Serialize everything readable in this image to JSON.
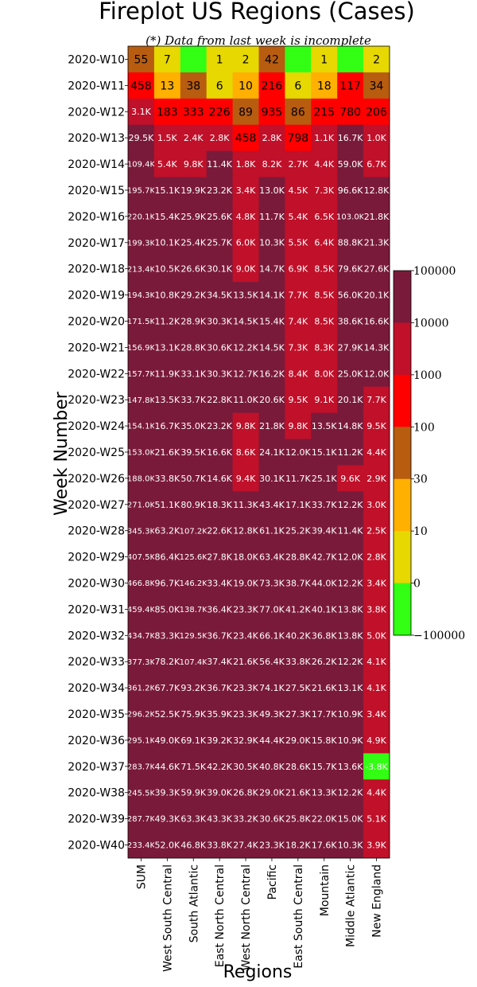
{
  "chart_data": {
    "type": "heatmap",
    "title": "Fireplot US Regions (Cases)",
    "subtitle": "(*) Data from last week is incomplete",
    "xlabel": "Regions",
    "ylabel": "Week Number",
    "columns": [
      "SUM",
      "West South Central",
      "South Atlantic",
      "East North Central",
      "West North Central",
      "Pacific",
      "East South Central",
      "Mountain",
      "Middle Atlantic",
      "New England"
    ],
    "rows": [
      "2020-W10",
      "2020-W11",
      "2020-W12",
      "2020-W13",
      "2020-W14",
      "2020-W15",
      "2020-W16",
      "2020-W17",
      "2020-W18",
      "2020-W19",
      "2020-W20",
      "2020-W21",
      "2020-W22",
      "2020-W23",
      "2020-W24",
      "2020-W25",
      "2020-W26",
      "2020-W27",
      "2020-W28",
      "2020-W29",
      "2020-W30",
      "2020-W31",
      "2020-W32",
      "2020-W33",
      "2020-W34",
      "2020-W35",
      "2020-W36",
      "2020-W37",
      "2020-W38",
      "2020-W39",
      "2020-W40"
    ],
    "cells": [
      [
        "55",
        "7",
        "",
        "1",
        "2",
        "42",
        "",
        "1",
        "",
        "2"
      ],
      [
        "458",
        "13",
        "38",
        "6",
        "10",
        "216",
        "6",
        "18",
        "117",
        "34"
      ],
      [
        "3.1K",
        "183",
        "333",
        "226",
        "89",
        "935",
        "86",
        "215",
        "780",
        "206"
      ],
      [
        "29.5K",
        "1.5K",
        "2.4K",
        "2.8K",
        "458",
        "2.8K",
        "798",
        "1.1K",
        "16.7K",
        "1.0K"
      ],
      [
        "109.4K",
        "5.4K",
        "9.8K",
        "11.4K",
        "1.8K",
        "8.2K",
        "2.7K",
        "4.4K",
        "59.0K",
        "6.7K"
      ],
      [
        "195.7K",
        "15.1K",
        "19.9K",
        "23.2K",
        "3.4K",
        "13.0K",
        "4.5K",
        "7.3K",
        "96.6K",
        "12.8K"
      ],
      [
        "220.1K",
        "15.4K",
        "25.9K",
        "25.6K",
        "4.8K",
        "11.7K",
        "5.4K",
        "6.5K",
        "103.0K",
        "21.8K"
      ],
      [
        "199.3K",
        "10.1K",
        "25.4K",
        "25.7K",
        "6.0K",
        "10.3K",
        "5.5K",
        "6.4K",
        "88.8K",
        "21.3K"
      ],
      [
        "213.4K",
        "10.5K",
        "26.6K",
        "30.1K",
        "9.0K",
        "14.7K",
        "6.9K",
        "8.5K",
        "79.6K",
        "27.6K"
      ],
      [
        "194.3K",
        "10.8K",
        "29.2K",
        "34.5K",
        "13.5K",
        "14.1K",
        "7.7K",
        "8.5K",
        "56.0K",
        "20.1K"
      ],
      [
        "171.5K",
        "11.2K",
        "28.9K",
        "30.3K",
        "14.5K",
        "15.4K",
        "7.4K",
        "8.5K",
        "38.6K",
        "16.6K"
      ],
      [
        "156.9K",
        "13.1K",
        "28.8K",
        "30.6K",
        "12.2K",
        "14.5K",
        "7.3K",
        "8.3K",
        "27.9K",
        "14.3K"
      ],
      [
        "157.7K",
        "11.9K",
        "33.1K",
        "30.3K",
        "12.7K",
        "16.2K",
        "8.4K",
        "8.0K",
        "25.0K",
        "12.0K"
      ],
      [
        "147.8K",
        "13.5K",
        "33.7K",
        "22.8K",
        "11.0K",
        "20.6K",
        "9.5K",
        "9.1K",
        "20.1K",
        "7.7K"
      ],
      [
        "154.1K",
        "16.7K",
        "35.0K",
        "23.2K",
        "9.8K",
        "21.8K",
        "9.8K",
        "13.5K",
        "14.8K",
        "9.5K"
      ],
      [
        "153.0K",
        "21.6K",
        "39.5K",
        "16.6K",
        "8.6K",
        "24.1K",
        "12.0K",
        "15.1K",
        "11.2K",
        "4.4K"
      ],
      [
        "188.0K",
        "33.8K",
        "50.7K",
        "14.6K",
        "9.4K",
        "30.1K",
        "11.7K",
        "25.1K",
        "9.6K",
        "2.9K"
      ],
      [
        "271.0K",
        "51.1K",
        "80.9K",
        "18.3K",
        "11.3K",
        "43.4K",
        "17.1K",
        "33.7K",
        "12.2K",
        "3.0K"
      ],
      [
        "345.3K",
        "63.2K",
        "107.2K",
        "22.6K",
        "12.8K",
        "61.1K",
        "25.2K",
        "39.4K",
        "11.4K",
        "2.5K"
      ],
      [
        "407.5K",
        "86.4K",
        "125.6K",
        "27.8K",
        "18.0K",
        "63.4K",
        "28.8K",
        "42.7K",
        "12.0K",
        "2.8K"
      ],
      [
        "466.8K",
        "96.7K",
        "146.2K",
        "33.4K",
        "19.0K",
        "73.3K",
        "38.7K",
        "44.0K",
        "12.2K",
        "3.4K"
      ],
      [
        "459.4K",
        "85.0K",
        "138.7K",
        "36.4K",
        "23.3K",
        "77.0K",
        "41.2K",
        "40.1K",
        "13.8K",
        "3.8K"
      ],
      [
        "434.7K",
        "83.3K",
        "129.5K",
        "36.7K",
        "23.4K",
        "66.1K",
        "40.2K",
        "36.8K",
        "13.8K",
        "5.0K"
      ],
      [
        "377.3K",
        "78.2K",
        "107.4K",
        "37.4K",
        "21.6K",
        "56.4K",
        "33.8K",
        "26.2K",
        "12.2K",
        "4.1K"
      ],
      [
        "361.2K",
        "67.7K",
        "93.2K",
        "36.7K",
        "23.3K",
        "74.1K",
        "27.5K",
        "21.6K",
        "13.1K",
        "4.1K"
      ],
      [
        "296.2K",
        "52.5K",
        "75.9K",
        "35.9K",
        "23.3K",
        "49.3K",
        "27.3K",
        "17.7K",
        "10.9K",
        "3.4K"
      ],
      [
        "295.1K",
        "49.0K",
        "69.1K",
        "39.2K",
        "32.9K",
        "44.4K",
        "29.0K",
        "15.8K",
        "10.9K",
        "4.9K"
      ],
      [
        "283.7K",
        "44.6K",
        "71.5K",
        "42.2K",
        "30.5K",
        "40.8K",
        "28.6K",
        "15.7K",
        "13.6K",
        "-3.8K"
      ],
      [
        "245.5K",
        "39.3K",
        "59.9K",
        "39.0K",
        "26.8K",
        "29.0K",
        "21.6K",
        "13.3K",
        "12.2K",
        "4.4K"
      ],
      [
        "287.7K",
        "49.3K",
        "63.3K",
        "43.3K",
        "33.2K",
        "30.6K",
        "25.8K",
        "22.0K",
        "15.0K",
        "5.1K"
      ],
      [
        "233.4K",
        "52.0K",
        "46.8K",
        "33.8K",
        "27.4K",
        "23.3K",
        "18.2K",
        "17.6K",
        "10.3K",
        "3.9K"
      ]
    ],
    "colorbar": {
      "ticks": [
        "100000",
        "10000",
        "1000",
        "100",
        "30",
        "10",
        "0",
        "−100000"
      ],
      "bins": [
        {
          "min": 10000,
          "color": "#7a1a3a"
        },
        {
          "min": 1000,
          "color": "#c0102a"
        },
        {
          "min": 100,
          "color": "#ff0000"
        },
        {
          "min": 30,
          "color": "#b85c10"
        },
        {
          "min": 10,
          "color": "#ffb000"
        },
        {
          "min": 0.5,
          "color": "#e6d800"
        },
        {
          "min": -1000000000000.0,
          "color": "#33ff14"
        }
      ],
      "colors_top_to_bottom": [
        "#7a1a3a",
        "#c0102a",
        "#ff0000",
        "#b85c10",
        "#ffb000",
        "#e6d800",
        "#33ff14"
      ]
    },
    "grid": false,
    "legend_placement": "right"
  }
}
